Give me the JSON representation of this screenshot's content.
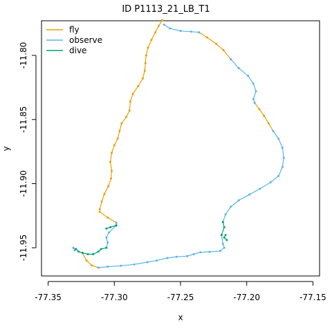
{
  "chart_data": {
    "type": "line",
    "title": "ID P1113_21_LB_T1",
    "xlabel": "x",
    "ylabel": "y",
    "xlim": [
      -77.355,
      -77.145
    ],
    "ylim": [
      -11.972,
      -11.773
    ],
    "xticks": [
      -77.35,
      -77.3,
      -77.25,
      -77.2,
      -77.15
    ],
    "xtick_labels": [
      "-77.35",
      "-77.30",
      "-77.25",
      "-77.20",
      "-77.15"
    ],
    "yticks": [
      -11.8,
      -11.85,
      -11.9,
      -11.95
    ],
    "ytick_labels": [
      "-11.80",
      "-11.85",
      "-11.90",
      "-11.95"
    ],
    "grid": false,
    "legend": "top-left",
    "series": [
      {
        "name": "fly",
        "color": "#E69F00",
        "segments": [
          [
            [
              -77.2638,
              -11.7726
            ],
            [
              -77.2665,
              -11.777
            ],
            [
              -77.269,
              -11.782
            ],
            [
              -77.272,
              -11.788
            ],
            [
              -77.2745,
              -11.794
            ],
            [
              -77.276,
              -11.8
            ],
            [
              -77.2765,
              -11.806
            ],
            [
              -77.277,
              -11.812
            ],
            [
              -77.2785,
              -11.818
            ],
            [
              -77.282,
              -11.824
            ],
            [
              -77.286,
              -11.83
            ],
            [
              -77.288,
              -11.836
            ],
            [
              -77.2885,
              -11.843
            ],
            [
              -77.291,
              -11.848
            ],
            [
              -77.2945,
              -11.853
            ],
            [
              -77.296,
              -11.859
            ],
            [
              -77.2975,
              -11.865
            ],
            [
              -77.3,
              -11.87
            ],
            [
              -77.302,
              -11.876
            ],
            [
              -77.303,
              -11.883
            ],
            [
              -77.302,
              -11.89
            ],
            [
              -77.3025,
              -11.896
            ],
            [
              -77.3045,
              -11.902
            ],
            [
              -77.3075,
              -11.908
            ],
            [
              -77.3095,
              -11.914
            ],
            [
              -77.311,
              -11.92
            ]
          ],
          [
            [
              -77.311,
              -11.922
            ],
            [
              -77.305,
              -11.9265
            ],
            [
              -77.2985,
              -11.9305
            ]
          ],
          [
            [
              -77.236,
              -11.782
            ],
            [
              -77.23,
              -11.786
            ],
            [
              -77.223,
              -11.791
            ],
            [
              -77.2175,
              -11.796
            ],
            [
              -77.212,
              -11.803
            ]
          ],
          [
            [
              -77.194,
              -11.837
            ],
            [
              -77.1905,
              -11.842
            ],
            [
              -77.187,
              -11.847
            ],
            [
              -77.1835,
              -11.853
            ],
            [
              -77.18,
              -11.859
            ]
          ],
          [
            [
              -77.324,
              -11.954
            ],
            [
              -77.321,
              -11.96
            ],
            [
              -77.317,
              -11.9638
            ],
            [
              -77.312,
              -11.9655
            ]
          ]
        ]
      },
      {
        "name": "observe",
        "color": "#56B4E9",
        "segments": [
          [
            [
              -77.2625,
              -11.776
            ],
            [
              -77.258,
              -11.779
            ],
            [
              -77.25,
              -11.781
            ],
            [
              -77.242,
              -11.7815
            ],
            [
              -77.236,
              -11.782
            ]
          ],
          [
            [
              -77.212,
              -11.803
            ],
            [
              -77.206,
              -11.81
            ],
            [
              -77.199,
              -11.816
            ],
            [
              -77.195,
              -11.822
            ],
            [
              -77.193,
              -11.828
            ],
            [
              -77.195,
              -11.834
            ],
            [
              -77.194,
              -11.837
            ]
          ],
          [
            [
              -77.18,
              -11.859
            ],
            [
              -77.176,
              -11.865
            ],
            [
              -77.173,
              -11.872
            ],
            [
              -77.172,
              -11.88
            ],
            [
              -77.173,
              -11.887
            ],
            [
              -77.176,
              -11.894
            ],
            [
              -77.182,
              -11.899
            ],
            [
              -77.19,
              -11.904
            ],
            [
              -77.198,
              -11.9085
            ],
            [
              -77.206,
              -11.913
            ],
            [
              -77.212,
              -11.918
            ],
            [
              -77.216,
              -11.924
            ],
            [
              -77.218,
              -11.93
            ]
          ],
          [
            [
              -77.219,
              -11.94
            ],
            [
              -77.218,
              -11.947
            ],
            [
              -77.217,
              -11.95
            ],
            [
              -77.22,
              -11.9525
            ],
            [
              -77.228,
              -11.9532
            ],
            [
              -77.235,
              -11.9535
            ],
            [
              -77.24,
              -11.955
            ],
            [
              -77.245,
              -11.9565
            ],
            [
              -77.253,
              -11.957
            ],
            [
              -77.26,
              -11.958
            ],
            [
              -77.268,
              -11.96
            ],
            [
              -77.275,
              -11.9612
            ],
            [
              -77.285,
              -11.963
            ],
            [
              -77.295,
              -11.964
            ],
            [
              -77.305,
              -11.9648
            ],
            [
              -77.312,
              -11.9655
            ]
          ],
          [
            [
              -77.33,
              -11.952
            ],
            [
              -77.331,
              -11.95
            ],
            [
              -77.329,
              -11.951
            ]
          ],
          [
            [
              -77.306,
              -11.95
            ],
            [
              -77.305,
              -11.946
            ],
            [
              -77.306,
              -11.942
            ],
            [
              -77.304,
              -11.938
            ],
            [
              -77.299,
              -11.933
            ],
            [
              -77.2985,
              -11.9305
            ]
          ]
        ]
      },
      {
        "name": "dive",
        "color": "#009E73",
        "segments": [
          [
            [
              -77.218,
              -11.93
            ],
            [
              -77.217,
              -11.934
            ],
            [
              -77.219,
              -11.94
            ]
          ],
          [
            [
              -77.215,
              -11.944
            ],
            [
              -77.217,
              -11.942
            ],
            [
              -77.216,
              -11.94
            ]
          ],
          [
            [
              -77.316,
              -11.955
            ],
            [
              -77.312,
              -11.953
            ],
            [
              -77.31,
              -11.951
            ],
            [
              -77.306,
              -11.95
            ]
          ],
          [
            [
              -77.324,
              -11.954
            ],
            [
              -77.32,
              -11.955
            ],
            [
              -77.316,
              -11.955
            ]
          ],
          [
            [
              -77.329,
              -11.951
            ],
            [
              -77.327,
              -11.953
            ],
            [
              -77.324,
              -11.954
            ]
          ],
          [
            [
              -77.2985,
              -11.9325
            ],
            [
              -77.303,
              -11.934
            ],
            [
              -77.306,
              -11.935
            ]
          ]
        ]
      }
    ]
  }
}
